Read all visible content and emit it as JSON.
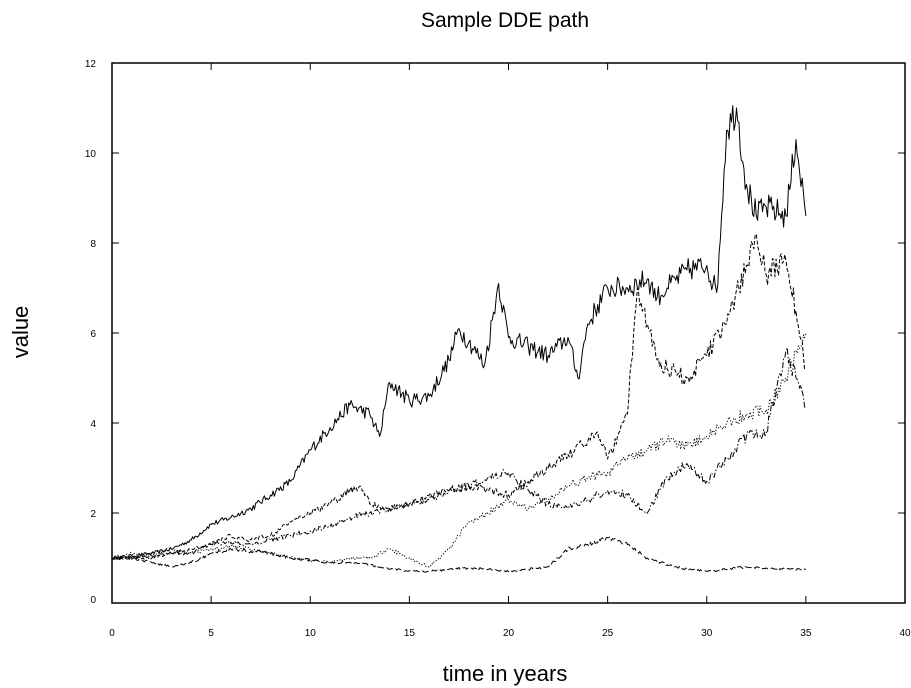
{
  "chart_data": {
    "type": "line",
    "title": "Sample DDE path",
    "xlabel": "time in years",
    "ylabel": "value",
    "xlim": [
      0,
      40
    ],
    "ylim": [
      0,
      12
    ],
    "x_ticks": [
      "0",
      "5",
      "10",
      "15",
      "20",
      "25",
      "30",
      "35",
      "40"
    ],
    "y_ticks": [
      "0",
      "2",
      "4",
      "6",
      "8",
      "10",
      "12"
    ],
    "grid": false,
    "legend": "none",
    "series": [
      {
        "style": "solid",
        "x": [
          0,
          1,
          2,
          3,
          4,
          5,
          6,
          7,
          8,
          9,
          10,
          11,
          12,
          13,
          13.5,
          14,
          15,
          16,
          17,
          17.5,
          18,
          18.8,
          19.5,
          20,
          21,
          22,
          23,
          23.5,
          24,
          25,
          26,
          27,
          27.5,
          28,
          29,
          30,
          30.5,
          31,
          31.5,
          32,
          32.5,
          33,
          34,
          34.5,
          35
        ],
        "y": [
          1.0,
          1.05,
          1.1,
          1.2,
          1.4,
          1.75,
          1.9,
          2.1,
          2.4,
          2.7,
          3.4,
          3.9,
          4.4,
          4.2,
          3.7,
          4.9,
          4.5,
          4.6,
          5.4,
          6.1,
          5.8,
          5.3,
          7.1,
          5.9,
          5.7,
          5.5,
          5.9,
          5.0,
          6.2,
          7.0,
          7.0,
          7.2,
          6.8,
          7.0,
          7.4,
          7.5,
          6.9,
          10.5,
          11.0,
          9.3,
          8.6,
          8.8,
          8.6,
          10.3,
          8.6
        ]
      },
      {
        "style": "dashed",
        "x": [
          0,
          2,
          3,
          4,
          5,
          6,
          7,
          8,
          9,
          10,
          11,
          12,
          12.5,
          13,
          14,
          15,
          16,
          17,
          18,
          19,
          20,
          21,
          22,
          23,
          24,
          24.5,
          25,
          26,
          26.5,
          27,
          27.5,
          28,
          29,
          30,
          31,
          32,
          32.5,
          33,
          34,
          34.5,
          35
        ],
        "y": [
          1.0,
          1.0,
          1.1,
          1.2,
          1.3,
          1.5,
          1.4,
          1.5,
          1.8,
          2.0,
          2.2,
          2.5,
          2.6,
          2.2,
          2.1,
          2.2,
          2.4,
          2.5,
          2.6,
          2.5,
          2.4,
          2.7,
          3.0,
          3.3,
          3.6,
          3.8,
          3.2,
          4.2,
          7.0,
          6.2,
          5.4,
          5.2,
          5.0,
          5.5,
          6.2,
          7.5,
          8.2,
          7.3,
          7.6,
          6.5,
          5.2
        ]
      },
      {
        "style": "dotted",
        "x": [
          0,
          1,
          2,
          3,
          4,
          5,
          6,
          7,
          8,
          9,
          10,
          11,
          12,
          13,
          14,
          15,
          16,
          17,
          18,
          19,
          20,
          21,
          22,
          23,
          24,
          25,
          26,
          27,
          28,
          29,
          30,
          31,
          32,
          33,
          34,
          34.5,
          35
        ],
        "y": [
          1.0,
          1.1,
          1.1,
          1.2,
          1.1,
          1.2,
          1.25,
          1.2,
          1.1,
          1.0,
          0.95,
          0.9,
          1.0,
          1.0,
          1.2,
          1.0,
          0.8,
          1.2,
          1.8,
          2.0,
          2.3,
          2.1,
          2.3,
          2.6,
          2.8,
          2.9,
          3.2,
          3.4,
          3.6,
          3.5,
          3.7,
          4.0,
          4.2,
          4.3,
          5.0,
          5.6,
          6.0
        ]
      },
      {
        "style": "dash-dot",
        "x": [
          0,
          1,
          2,
          3,
          4,
          5,
          6,
          7,
          8,
          9,
          10,
          11,
          12,
          13,
          14,
          15,
          16,
          17,
          18,
          19,
          20,
          21,
          22,
          23,
          24,
          25,
          26,
          27,
          28,
          29,
          30,
          31,
          32,
          33,
          34,
          34.5,
          35
        ],
        "y": [
          1.0,
          1.0,
          1.05,
          1.1,
          1.1,
          1.3,
          1.35,
          1.3,
          1.4,
          1.5,
          1.6,
          1.7,
          1.9,
          2.0,
          2.1,
          2.2,
          2.3,
          2.5,
          2.6,
          2.8,
          2.9,
          2.5,
          2.2,
          2.1,
          2.3,
          2.5,
          2.4,
          2.0,
          2.8,
          3.1,
          2.7,
          3.2,
          3.7,
          3.8,
          5.6,
          5.0,
          4.4
        ]
      },
      {
        "style": "long-dash",
        "x": [
          0,
          1,
          2,
          3,
          4,
          5,
          6,
          7,
          8,
          9,
          10,
          11,
          12,
          13,
          14,
          15,
          16,
          17,
          18,
          19,
          20,
          21,
          22,
          23,
          24,
          25,
          26,
          27,
          28,
          29,
          30,
          31,
          32,
          33,
          34,
          35
        ],
        "y": [
          1.0,
          1.0,
          0.9,
          0.8,
          0.9,
          1.1,
          1.2,
          1.15,
          1.1,
          1.0,
          0.95,
          0.9,
          0.9,
          0.85,
          0.75,
          0.72,
          0.7,
          0.75,
          0.78,
          0.75,
          0.7,
          0.75,
          0.8,
          1.2,
          1.3,
          1.45,
          1.3,
          1.0,
          0.85,
          0.75,
          0.7,
          0.75,
          0.8,
          0.78,
          0.75,
          0.75
        ]
      }
    ]
  }
}
